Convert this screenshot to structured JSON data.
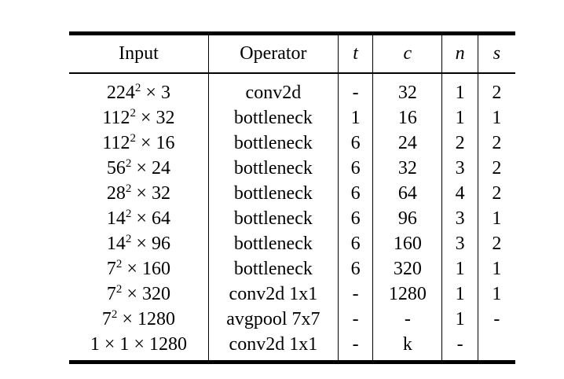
{
  "table": {
    "headers": {
      "input": "Input",
      "operator": "Operator",
      "t": "t",
      "c": "c",
      "n": "n",
      "s": "s"
    },
    "rows": [
      {
        "input_base": "224",
        "input_exp": "2",
        "input_rest": " × 3",
        "operator": "conv2d",
        "t": "-",
        "c": "32",
        "n": "1",
        "s": "2"
      },
      {
        "input_base": "112",
        "input_exp": "2",
        "input_rest": " × 32",
        "operator": "bottleneck",
        "t": "1",
        "c": "16",
        "n": "1",
        "s": "1"
      },
      {
        "input_base": "112",
        "input_exp": "2",
        "input_rest": " × 16",
        "operator": "bottleneck",
        "t": "6",
        "c": "24",
        "n": "2",
        "s": "2"
      },
      {
        "input_base": "56",
        "input_exp": "2",
        "input_rest": " × 24",
        "operator": "bottleneck",
        "t": "6",
        "c": "32",
        "n": "3",
        "s": "2"
      },
      {
        "input_base": "28",
        "input_exp": "2",
        "input_rest": " × 32",
        "operator": "bottleneck",
        "t": "6",
        "c": "64",
        "n": "4",
        "s": "2"
      },
      {
        "input_base": "14",
        "input_exp": "2",
        "input_rest": " × 64",
        "operator": "bottleneck",
        "t": "6",
        "c": "96",
        "n": "3",
        "s": "1"
      },
      {
        "input_base": "14",
        "input_exp": "2",
        "input_rest": " × 96",
        "operator": "bottleneck",
        "t": "6",
        "c": "160",
        "n": "3",
        "s": "2"
      },
      {
        "input_base": "7",
        "input_exp": "2",
        "input_rest": " × 160",
        "operator": "bottleneck",
        "t": "6",
        "c": "320",
        "n": "1",
        "s": "1"
      },
      {
        "input_base": "7",
        "input_exp": "2",
        "input_rest": " × 320",
        "operator": "conv2d 1x1",
        "t": "-",
        "c": "1280",
        "n": "1",
        "s": "1"
      },
      {
        "input_base": "7",
        "input_exp": "2",
        "input_rest": " × 1280",
        "operator": "avgpool 7x7",
        "t": "-",
        "c": "-",
        "n": "1",
        "s": "-"
      },
      {
        "input_base": "1 × 1 × 1280",
        "input_exp": "",
        "input_rest": "",
        "operator": "conv2d 1x1",
        "t": "-",
        "c": "k",
        "n": "-",
        "s": ""
      }
    ]
  }
}
